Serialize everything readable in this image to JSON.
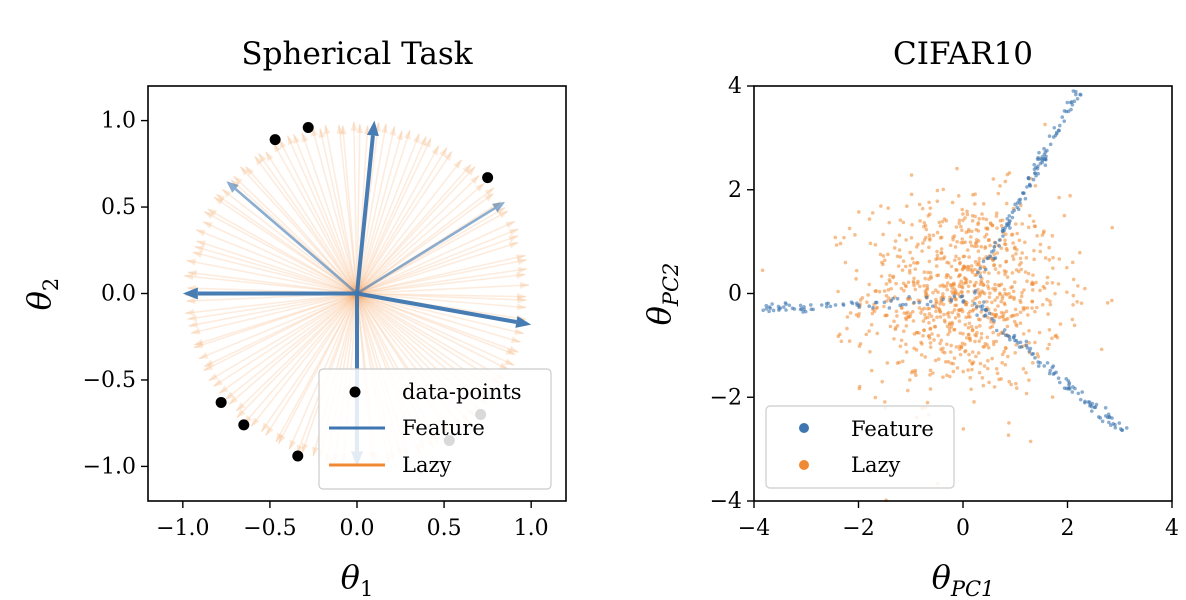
{
  "colors": {
    "feature": "#3d76b0",
    "lazy": "#f08a32",
    "points": "#000000",
    "frame": "#000000"
  },
  "chart_data": [
    {
      "type": "vector-field",
      "title": "Spherical Task",
      "xlabel": {
        "symbol": "θ",
        "sub": "1"
      },
      "ylabel": {
        "symbol": "θ",
        "sub": "2"
      },
      "xlim": [
        -1.2,
        1.2
      ],
      "ylim": [
        -1.2,
        1.2
      ],
      "xticks": [
        -1.0,
        -0.5,
        0.0,
        0.5,
        1.0
      ],
      "xtick_labels": [
        "−1.0",
        "−0.5",
        "0.0",
        "0.5",
        "1.0"
      ],
      "yticks": [
        -1.0,
        -0.5,
        0.0,
        0.5,
        1.0
      ],
      "ytick_labels": [
        "−1.0",
        "−0.5",
        "0.0",
        "0.5",
        "1.0"
      ],
      "data_points": [
        [
          -0.47,
          0.89
        ],
        [
          -0.28,
          0.96
        ],
        [
          0.75,
          0.67
        ],
        [
          -0.78,
          -0.63
        ],
        [
          -0.65,
          -0.76
        ],
        [
          -0.34,
          -0.94
        ],
        [
          0.71,
          -0.7
        ],
        [
          0.53,
          -0.85
        ]
      ],
      "feature_arrows": [
        {
          "dx": 0.1,
          "dy": 1.0,
          "strength": "strong"
        },
        {
          "dx": -1.0,
          "dy": 0.0,
          "strength": "strong"
        },
        {
          "dx": 1.0,
          "dy": -0.18,
          "strength": "strong"
        },
        {
          "dx": 0.0,
          "dy": -1.0,
          "strength": "strong"
        },
        {
          "dx": -0.75,
          "dy": 0.65,
          "strength": "weak"
        },
        {
          "dx": 0.85,
          "dy": 0.53,
          "strength": "weak"
        }
      ],
      "lazy": {
        "count": 130,
        "radius": 1.0,
        "description": "unit-norm arrows in all directions"
      },
      "legend": {
        "position": "lower right",
        "entries": [
          "data-points",
          "Feature",
          "Lazy"
        ]
      }
    },
    {
      "type": "scatter",
      "title": "CIFAR10",
      "xlabel": {
        "symbol": "θ",
        "sub": "PC1"
      },
      "ylabel": {
        "symbol": "θ",
        "sub": "PC2"
      },
      "xlim": [
        -4,
        4
      ],
      "ylim": [
        -4,
        4
      ],
      "xticks": [
        -4,
        -2,
        0,
        2,
        4
      ],
      "xtick_labels": [
        "−4",
        "−2",
        "0",
        "2",
        "4"
      ],
      "yticks": [
        -4,
        -2,
        0,
        2,
        4
      ],
      "ytick_labels": [
        "−4",
        "−2",
        "0",
        "2",
        "4"
      ],
      "feature_series": {
        "name": "Feature",
        "center": [
          0.1,
          -0.1
        ],
        "branches": [
          {
            "to": [
              -3.9,
              -0.3
            ],
            "count": 70
          },
          {
            "to": [
              2.2,
              3.9
            ],
            "count": 110
          },
          {
            "to": [
              3.1,
              -2.7
            ],
            "count": 100
          }
        ]
      },
      "lazy_series": {
        "name": "Lazy",
        "count": 900,
        "mean": [
          0.0,
          0.0
        ],
        "std": 0.95,
        "spread": "isotropic Gaussian cloud"
      },
      "legend": {
        "position": "lower left",
        "entries": [
          "Feature",
          "Lazy"
        ]
      }
    }
  ]
}
